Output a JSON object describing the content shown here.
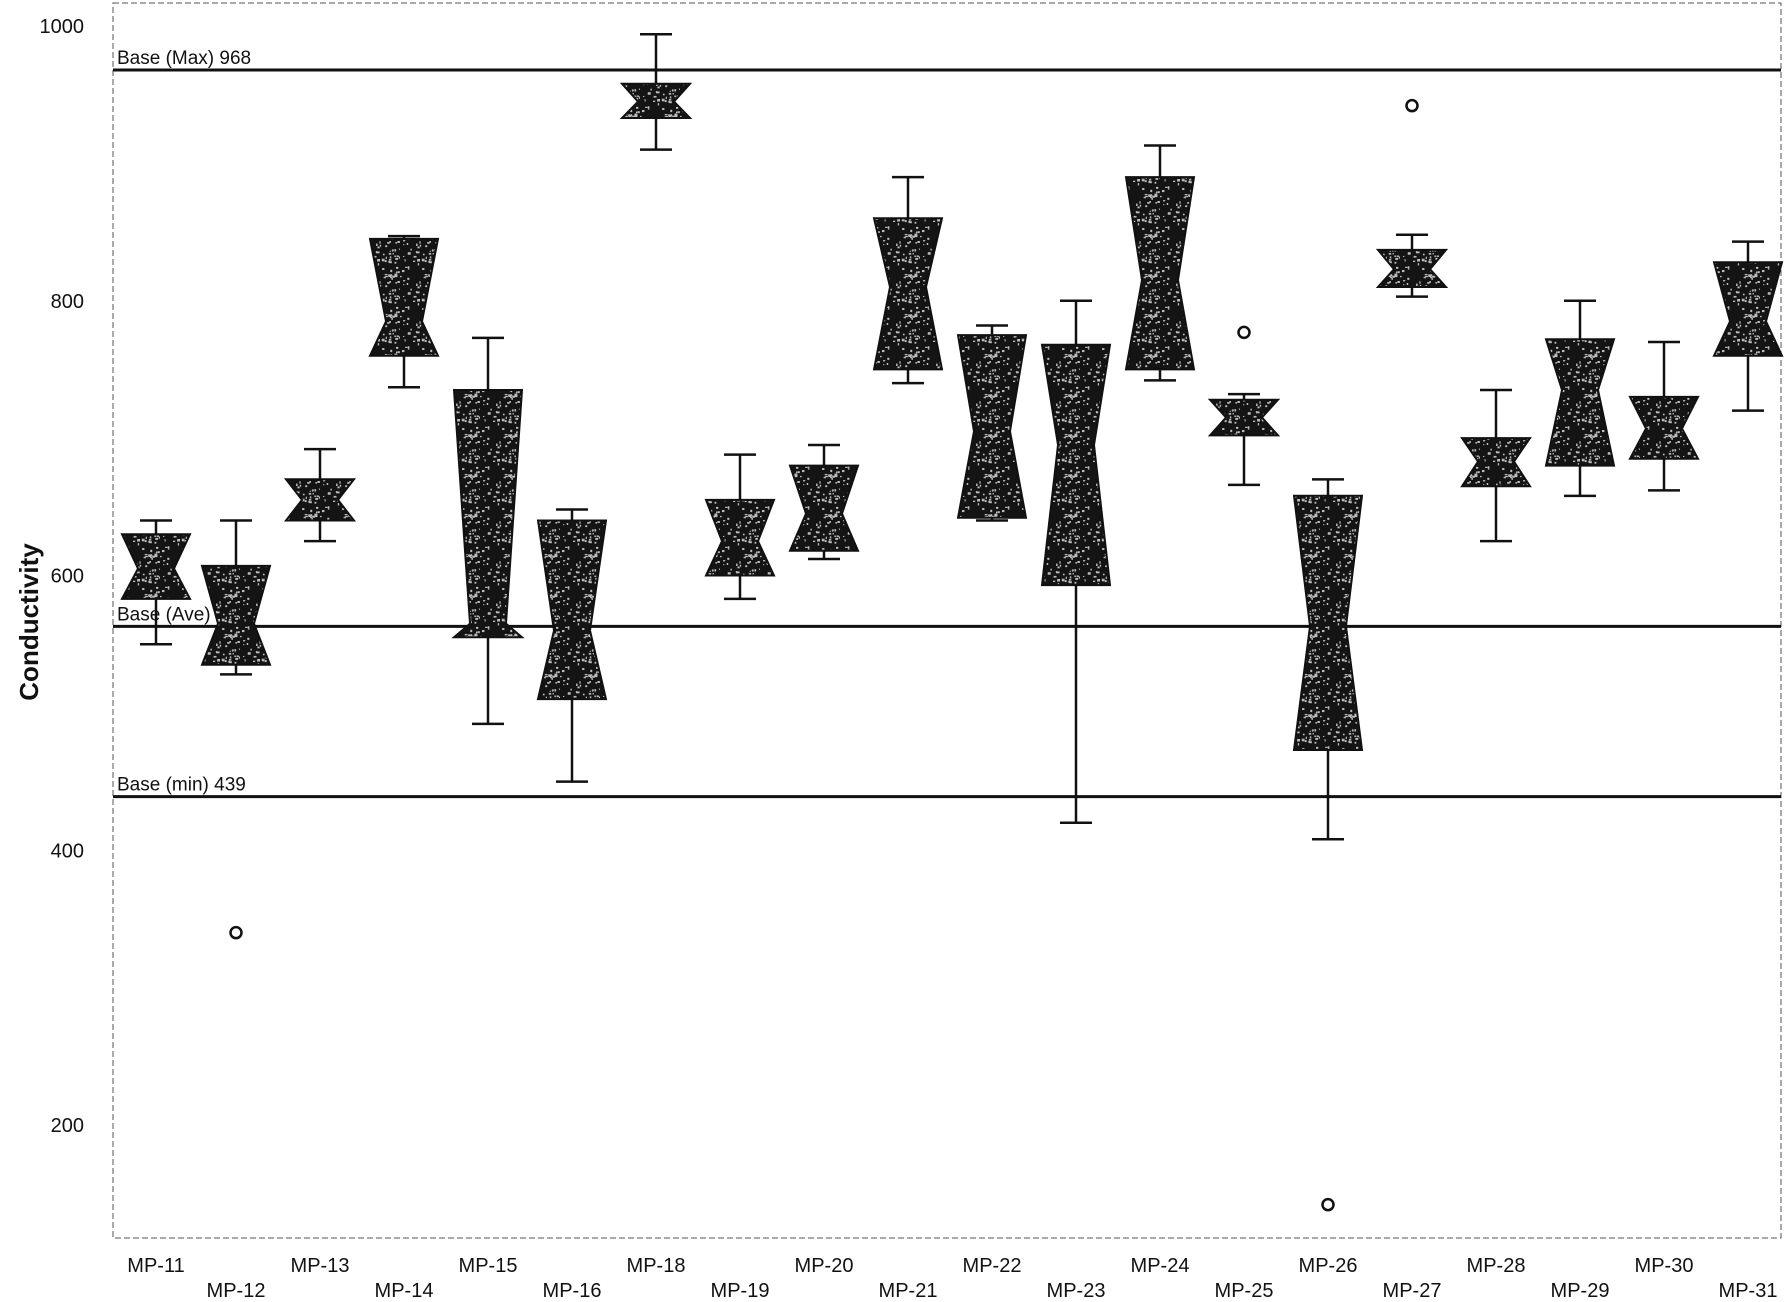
{
  "chart_data": {
    "type": "boxplot",
    "title": "",
    "xlabel": "",
    "ylabel": "Conductivity",
    "ylim": [
      110,
      1010
    ],
    "yticks": [
      200,
      400,
      600,
      800,
      1000
    ],
    "grid": false,
    "legend": "none",
    "box_color": "#141414",
    "speckle_color": "#bdbdbd",
    "reference_lines": [
      {
        "label": "Base (Max) 968",
        "value": 968
      },
      {
        "label": "Base (Ave) 563",
        "value": 563
      },
      {
        "label": "Base (min) 439",
        "value": 439
      }
    ],
    "boxes": [
      {
        "name": "MP-11",
        "whisker_low": 550,
        "q1": 583,
        "median": 605,
        "q3": 630,
        "whisker_high": 640,
        "outliers": []
      },
      {
        "name": "MP-12",
        "whisker_low": 528,
        "q1": 535,
        "median": 565,
        "q3": 607,
        "whisker_high": 640,
        "outliers": [
          340
        ]
      },
      {
        "name": "MP-13",
        "whisker_low": 625,
        "q1": 640,
        "median": 655,
        "q3": 670,
        "whisker_high": 692,
        "outliers": []
      },
      {
        "name": "MP-14",
        "whisker_low": 737,
        "q1": 760,
        "median": 785,
        "q3": 845,
        "whisker_high": 847,
        "outliers": []
      },
      {
        "name": "MP-15",
        "whisker_low": 492,
        "q1": 555,
        "median": 565,
        "q3": 735,
        "whisker_high": 773,
        "outliers": []
      },
      {
        "name": "MP-16",
        "whisker_low": 450,
        "q1": 510,
        "median": 560,
        "q3": 640,
        "whisker_high": 648,
        "outliers": []
      },
      {
        "name": "MP-18",
        "whisker_low": 910,
        "q1": 933,
        "median": 945,
        "q3": 958,
        "whisker_high": 994,
        "outliers": []
      },
      {
        "name": "MP-19",
        "whisker_low": 583,
        "q1": 600,
        "median": 625,
        "q3": 655,
        "whisker_high": 688,
        "outliers": []
      },
      {
        "name": "MP-20",
        "whisker_low": 612,
        "q1": 618,
        "median": 645,
        "q3": 680,
        "whisker_high": 695,
        "outliers": []
      },
      {
        "name": "MP-21",
        "whisker_low": 740,
        "q1": 750,
        "median": 810,
        "q3": 860,
        "whisker_high": 890,
        "outliers": []
      },
      {
        "name": "MP-22",
        "whisker_low": 640,
        "q1": 642,
        "median": 705,
        "q3": 775,
        "whisker_high": 782,
        "outliers": []
      },
      {
        "name": "MP-23",
        "whisker_low": 420,
        "q1": 593,
        "median": 695,
        "q3": 768,
        "whisker_high": 800,
        "outliers": []
      },
      {
        "name": "MP-24",
        "whisker_low": 742,
        "q1": 750,
        "median": 815,
        "q3": 890,
        "whisker_high": 913,
        "outliers": []
      },
      {
        "name": "MP-25",
        "whisker_low": 666,
        "q1": 702,
        "median": 715,
        "q3": 728,
        "whisker_high": 732,
        "outliers": [
          777
        ]
      },
      {
        "name": "MP-26",
        "whisker_low": 408,
        "q1": 473,
        "median": 563,
        "q3": 658,
        "whisker_high": 670,
        "outliers": [
          142
        ]
      },
      {
        "name": "MP-27",
        "whisker_low": 803,
        "q1": 810,
        "median": 823,
        "q3": 837,
        "whisker_high": 848,
        "outliers": [
          942
        ]
      },
      {
        "name": "MP-28",
        "whisker_low": 625,
        "q1": 665,
        "median": 683,
        "q3": 700,
        "whisker_high": 735,
        "outliers": []
      },
      {
        "name": "MP-29",
        "whisker_low": 658,
        "q1": 680,
        "median": 735,
        "q3": 772,
        "whisker_high": 800,
        "outliers": []
      },
      {
        "name": "MP-30",
        "whisker_low": 662,
        "q1": 685,
        "median": 707,
        "q3": 730,
        "whisker_high": 770,
        "outliers": []
      },
      {
        "name": "MP-31",
        "whisker_low": 720,
        "q1": 760,
        "median": 785,
        "q3": 828,
        "whisker_high": 843,
        "outliers": []
      }
    ]
  }
}
